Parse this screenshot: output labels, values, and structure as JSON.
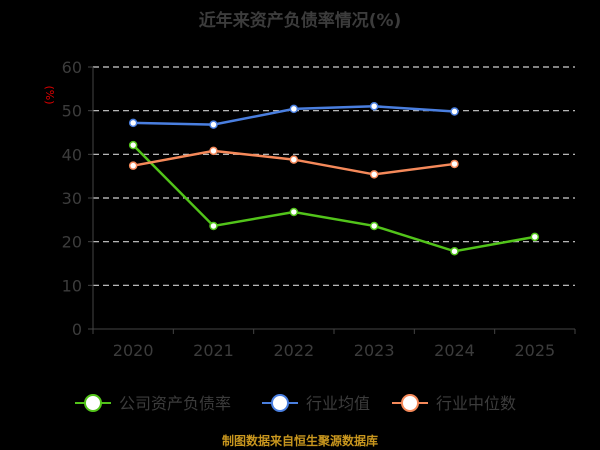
{
  "chart_data": {
    "type": "line",
    "title": "近年来资产负债率情况(%)",
    "ylabel": "(%)",
    "xlabel": "",
    "categories": [
      "2020",
      "2021",
      "2022",
      "2023",
      "2024",
      "2025"
    ],
    "ylim": [
      0,
      60
    ],
    "yticks": [
      "0",
      "10",
      "20",
      "30",
      "40",
      "50",
      "60"
    ],
    "grid": true,
    "legend_position": "bottom",
    "series": [
      {
        "name": "公司资产负债率",
        "color": "#52c41a",
        "values": [
          42.1,
          23.6,
          26.8,
          23.6,
          17.8,
          21.1
        ]
      },
      {
        "name": "行业均值",
        "color": "#4a7fe0",
        "values": [
          47.2,
          46.8,
          50.4,
          51.0,
          49.8,
          null
        ]
      },
      {
        "name": "行业中位数",
        "color": "#f5895a",
        "values": [
          37.4,
          40.8,
          38.8,
          35.4,
          37.8,
          null
        ]
      }
    ],
    "source": "制图数据来自恒生聚源数据库"
  }
}
